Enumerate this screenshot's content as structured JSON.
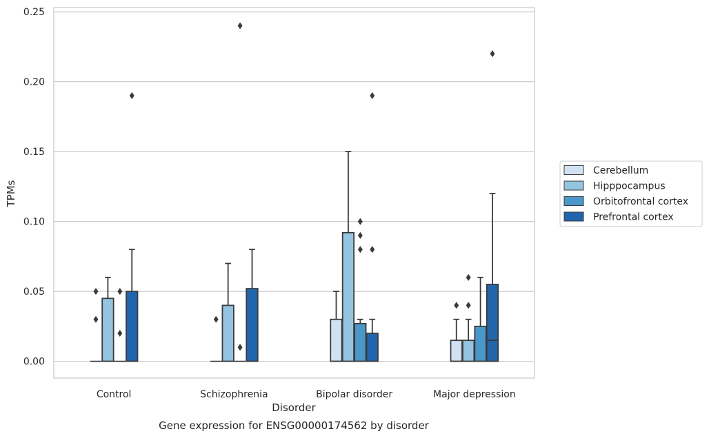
{
  "chart_data": {
    "type": "box",
    "title": "Gene expression for ENSG00000174562 by disorder",
    "xlabel": "Disorder",
    "ylabel": "TPMs",
    "ylim": [
      -0.012,
      0.253
    ],
    "yticks": [
      0.0,
      0.05,
      0.1,
      0.15,
      0.2,
      0.25
    ],
    "ytick_labels": [
      "0.00",
      "0.05",
      "0.10",
      "0.15",
      "0.20",
      "0.25"
    ],
    "grid": "horizontal",
    "legend_position": "right",
    "categories": [
      "Control",
      "Schizophrenia",
      "Bipolar disorder",
      "Major depression"
    ],
    "series": [
      {
        "name": "Cerebellum",
        "color": "#d0e1f2",
        "boxes": [
          {
            "q1": 0,
            "median": 0,
            "q3": 0,
            "whisker_low": 0,
            "whisker_high": 0,
            "outliers": [
              0.03,
              0.05
            ]
          },
          {
            "q1": 0,
            "median": 0,
            "q3": 0,
            "whisker_low": 0,
            "whisker_high": 0,
            "outliers": [
              0.03
            ]
          },
          {
            "q1": 0,
            "median": 0,
            "q3": 0.03,
            "whisker_low": 0,
            "whisker_high": 0.05,
            "outliers": []
          },
          {
            "q1": 0,
            "median": 0,
            "q3": 0.015,
            "whisker_low": 0,
            "whisker_high": 0.03,
            "outliers": [
              0.04
            ]
          }
        ]
      },
      {
        "name": "Hipppocampus",
        "color": "#94c4df",
        "boxes": [
          {
            "q1": 0,
            "median": 0,
            "q3": 0.045,
            "whisker_low": 0,
            "whisker_high": 0.06,
            "outliers": []
          },
          {
            "q1": 0,
            "median": 0,
            "q3": 0.04,
            "whisker_low": 0,
            "whisker_high": 0.07,
            "outliers": []
          },
          {
            "q1": 0,
            "median": 0,
            "q3": 0.092,
            "whisker_low": 0,
            "whisker_high": 0.15,
            "outliers": []
          },
          {
            "q1": 0,
            "median": 0,
            "q3": 0.015,
            "whisker_low": 0,
            "whisker_high": 0.03,
            "outliers": [
              0.04,
              0.06
            ]
          }
        ]
      },
      {
        "name": "Orbitofrontal cortex",
        "color": "#4a98c9",
        "boxes": [
          {
            "q1": 0,
            "median": 0,
            "q3": 0,
            "whisker_low": 0,
            "whisker_high": 0,
            "outliers": [
              0.02,
              0.05
            ]
          },
          {
            "q1": 0,
            "median": 0,
            "q3": 0,
            "whisker_low": 0,
            "whisker_high": 0,
            "outliers": [
              0.01,
              0.24
            ]
          },
          {
            "q1": 0,
            "median": 0,
            "q3": 0.027,
            "whisker_low": 0,
            "whisker_high": 0.03,
            "outliers": [
              0.08,
              0.09,
              0.1
            ]
          },
          {
            "q1": 0,
            "median": 0,
            "q3": 0.025,
            "whisker_low": 0,
            "whisker_high": 0.06,
            "outliers": []
          }
        ]
      },
      {
        "name": "Prefrontal cortex",
        "color": "#2166ac",
        "boxes": [
          {
            "q1": 0,
            "median": 0,
            "q3": 0.05,
            "whisker_low": 0,
            "whisker_high": 0.08,
            "outliers": [
              0.19
            ]
          },
          {
            "q1": 0,
            "median": 0,
            "q3": 0.052,
            "whisker_low": 0,
            "whisker_high": 0.08,
            "outliers": []
          },
          {
            "q1": 0,
            "median": 0,
            "q3": 0.02,
            "whisker_low": 0,
            "whisker_high": 0.03,
            "outliers": [
              0.08,
              0.19
            ]
          },
          {
            "q1": 0,
            "median": 0.015,
            "q3": 0.055,
            "whisker_low": 0,
            "whisker_high": 0.12,
            "outliers": [
              0.22
            ]
          }
        ]
      }
    ],
    "colors": {
      "grid": "#cccccc",
      "frame": "#cccccc",
      "edge": "#3a3a3a",
      "text": "#262626"
    }
  }
}
